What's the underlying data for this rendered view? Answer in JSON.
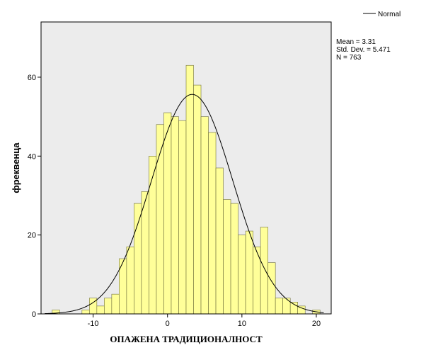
{
  "chart_data": {
    "type": "bar",
    "xlabel": "ОПАЖЕНА ТРАДИЦИОНАЛНОСТ",
    "ylabel": "фреквенца",
    "xlim": [
      -17,
      22
    ],
    "ylim": [
      0,
      74
    ],
    "x_ticks": [
      -10,
      0,
      10,
      20
    ],
    "y_ticks": [
      0,
      20,
      40,
      60
    ],
    "bin_width": 1,
    "bins": [
      {
        "x": -15,
        "count": 1
      },
      {
        "x": -14,
        "count": 0
      },
      {
        "x": -13,
        "count": 0
      },
      {
        "x": -12,
        "count": 0
      },
      {
        "x": -11,
        "count": 1
      },
      {
        "x": -10,
        "count": 4
      },
      {
        "x": -9,
        "count": 2
      },
      {
        "x": -8,
        "count": 4
      },
      {
        "x": -7,
        "count": 5
      },
      {
        "x": -6,
        "count": 14
      },
      {
        "x": -5,
        "count": 17
      },
      {
        "x": -4,
        "count": 28
      },
      {
        "x": -3,
        "count": 31
      },
      {
        "x": -2,
        "count": 40
      },
      {
        "x": -1,
        "count": 48
      },
      {
        "x": 0,
        "count": 51
      },
      {
        "x": 1,
        "count": 50
      },
      {
        "x": 2,
        "count": 49
      },
      {
        "x": 3,
        "count": 63
      },
      {
        "x": 4,
        "count": 58
      },
      {
        "x": 5,
        "count": 50
      },
      {
        "x": 6,
        "count": 46
      },
      {
        "x": 7,
        "count": 37
      },
      {
        "x": 8,
        "count": 29
      },
      {
        "x": 9,
        "count": 28
      },
      {
        "x": 10,
        "count": 20
      },
      {
        "x": 11,
        "count": 21
      },
      {
        "x": 12,
        "count": 17
      },
      {
        "x": 13,
        "count": 22
      },
      {
        "x": 14,
        "count": 13
      },
      {
        "x": 15,
        "count": 4
      },
      {
        "x": 16,
        "count": 4
      },
      {
        "x": 17,
        "count": 3
      },
      {
        "x": 18,
        "count": 2
      },
      {
        "x": 19,
        "count": 0
      },
      {
        "x": 20,
        "count": 1
      }
    ],
    "normal_curve": {
      "mean": 3.31,
      "std": 5.471,
      "n": 763
    },
    "legend": {
      "entries": [
        "Normal"
      ],
      "placement": "top-right"
    },
    "stats": [
      "Mean = 3.31",
      "Std. Dev. = 5.471",
      "N = 763"
    ],
    "colors": {
      "bar_fill": "#ffff99",
      "bar_stroke": "#6e6e3a",
      "plot_bg": "#ececec",
      "curve": "#000000"
    },
    "grid": false
  }
}
